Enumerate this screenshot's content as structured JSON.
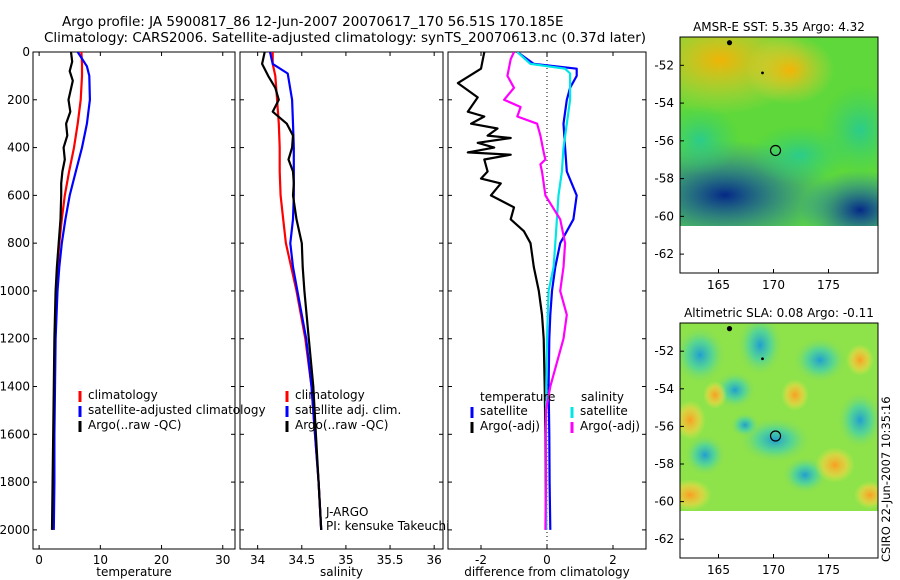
{
  "figure": {
    "title_line1": "Argo profile: JA 5900817_86 12-Jun-2007 20070617_170 56.51S 170.185E",
    "title_line2": "Climatology: CARS2006. Satellite-adjusted climatology: synTS_20070613.nc (0.37d later)",
    "credit": "CSIRO 22-Jun-2007 10:35:16",
    "colors": {
      "climatology": "#ff0000",
      "satellite": "#0000ff",
      "argo": "#000000",
      "temp_satellite_diff": "#0000ff",
      "sal_satellite_diff": "#00e5e5",
      "sal_argo_diff": "#ff00ff"
    }
  },
  "chart_data": [
    {
      "id": "temperature",
      "type": "line",
      "xlabel": "temperature",
      "xlim": [
        -1,
        32
      ],
      "ylim": [
        0,
        2080
      ],
      "y_reversed": true,
      "xticks": [
        0,
        10,
        20,
        30
      ],
      "yticks": [
        0,
        200,
        400,
        600,
        800,
        1000,
        1200,
        1400,
        1600,
        1800,
        2000
      ],
      "legend": [
        "climatology",
        "satellite-adjusted climatology",
        "Argo(..raw -QC)"
      ],
      "legend_placement": "lower-right",
      "series": [
        {
          "name": "climatology",
          "color": "#ff0000",
          "points": [
            [
              6.9,
              0
            ],
            [
              7.0,
              50
            ],
            [
              7.0,
              100
            ],
            [
              6.8,
              200
            ],
            [
              6.3,
              300
            ],
            [
              5.7,
              400
            ],
            [
              4.9,
              500
            ],
            [
              4.2,
              600
            ],
            [
              3.7,
              700
            ],
            [
              3.3,
              800
            ],
            [
              3.0,
              900
            ],
            [
              2.8,
              1000
            ],
            [
              2.6,
              1200
            ],
            [
              2.5,
              1400
            ],
            [
              2.4,
              1600
            ],
            [
              2.3,
              1800
            ],
            [
              2.2,
              2000
            ]
          ]
        },
        {
          "name": "satellite-adjusted climatology",
          "color": "#0000ff",
          "points": [
            [
              6.3,
              0
            ],
            [
              7.8,
              60
            ],
            [
              8.2,
              100
            ],
            [
              8.3,
              200
            ],
            [
              7.8,
              300
            ],
            [
              7.0,
              400
            ],
            [
              6.0,
              500
            ],
            [
              5.0,
              600
            ],
            [
              4.3,
              700
            ],
            [
              3.7,
              800
            ],
            [
              3.3,
              900
            ],
            [
              3.0,
              1000
            ],
            [
              2.7,
              1200
            ],
            [
              2.6,
              1400
            ],
            [
              2.5,
              1600
            ],
            [
              2.5,
              1800
            ],
            [
              2.4,
              2000
            ]
          ]
        },
        {
          "name": "Argo(..raw -QC)",
          "color": "#000000",
          "points": [
            [
              5.2,
              0
            ],
            [
              5.4,
              40
            ],
            [
              5.0,
              80
            ],
            [
              5.5,
              120
            ],
            [
              4.8,
              200
            ],
            [
              5.1,
              250
            ],
            [
              4.4,
              300
            ],
            [
              4.6,
              350
            ],
            [
              4.0,
              400
            ],
            [
              4.2,
              450
            ],
            [
              3.8,
              500
            ],
            [
              3.6,
              550
            ],
            [
              3.6,
              600
            ],
            [
              3.5,
              700
            ],
            [
              3.2,
              800
            ],
            [
              2.9,
              900
            ],
            [
              2.7,
              1000
            ],
            [
              2.5,
              1200
            ],
            [
              2.4,
              1400
            ],
            [
              2.3,
              1600
            ],
            [
              2.2,
              1800
            ],
            [
              2.1,
              2000
            ]
          ]
        }
      ]
    },
    {
      "id": "salinity",
      "type": "line",
      "xlabel": "salinity",
      "xlim": [
        33.8,
        36.1
      ],
      "ylim": [
        0,
        2080
      ],
      "y_reversed": true,
      "xticks": [
        34,
        34.5,
        35,
        35.5,
        36
      ],
      "legend": [
        "climatology",
        "satellite adj. clim.",
        "Argo(..raw -QC)"
      ],
      "legend_placement": "lower-right",
      "annotations": [
        "J-ARGO",
        "PI: kensuke Takeuchi"
      ],
      "series": [
        {
          "name": "climatology",
          "color": "#ff0000",
          "points": [
            [
              34.17,
              0
            ],
            [
              34.17,
              50
            ],
            [
              34.2,
              100
            ],
            [
              34.22,
              200
            ],
            [
              34.24,
              300
            ],
            [
              34.25,
              400
            ],
            [
              34.25,
              500
            ],
            [
              34.26,
              600
            ],
            [
              34.29,
              700
            ],
            [
              34.32,
              800
            ],
            [
              34.38,
              900
            ],
            [
              34.44,
              1000
            ],
            [
              34.54,
              1200
            ],
            [
              34.61,
              1400
            ],
            [
              34.65,
              1600
            ],
            [
              34.69,
              1800
            ],
            [
              34.72,
              2000
            ]
          ]
        },
        {
          "name": "satellite adj. clim.",
          "color": "#0000ff",
          "points": [
            [
              34.14,
              0
            ],
            [
              34.17,
              50
            ],
            [
              34.34,
              90
            ],
            [
              34.39,
              200
            ],
            [
              34.4,
              300
            ],
            [
              34.41,
              400
            ],
            [
              34.41,
              500
            ],
            [
              34.41,
              600
            ],
            [
              34.4,
              700
            ],
            [
              34.37,
              800
            ],
            [
              34.4,
              900
            ],
            [
              34.45,
              1000
            ],
            [
              34.55,
              1200
            ],
            [
              34.61,
              1400
            ],
            [
              34.65,
              1600
            ],
            [
              34.69,
              1800
            ],
            [
              34.72,
              2000
            ]
          ]
        },
        {
          "name": "Argo(..raw -QC)",
          "color": "#000000",
          "points": [
            [
              34.08,
              0
            ],
            [
              34.05,
              50
            ],
            [
              34.12,
              100
            ],
            [
              34.2,
              150
            ],
            [
              34.24,
              200
            ],
            [
              34.17,
              250
            ],
            [
              34.33,
              300
            ],
            [
              34.4,
              350
            ],
            [
              34.39,
              400
            ],
            [
              34.35,
              450
            ],
            [
              34.4,
              500
            ],
            [
              34.41,
              550
            ],
            [
              34.4,
              600
            ],
            [
              34.44,
              700
            ],
            [
              34.5,
              800
            ],
            [
              34.51,
              900
            ],
            [
              34.53,
              1000
            ],
            [
              34.58,
              1200
            ],
            [
              34.63,
              1400
            ],
            [
              34.66,
              1600
            ],
            [
              34.69,
              1800
            ],
            [
              34.72,
              2000
            ]
          ]
        }
      ]
    },
    {
      "id": "difference",
      "type": "line",
      "xlabel": "difference from climatology",
      "xlim": [
        -3,
        3
      ],
      "ylim": [
        0,
        2080
      ],
      "y_reversed": true,
      "xticks": [
        -2,
        0,
        2
      ],
      "legend_groups": [
        {
          "heading": "temperature",
          "entries": [
            "satellite",
            "Argo(-adj)"
          ]
        },
        {
          "heading": "salinity",
          "entries": [
            "satellite",
            "Argo(-adj)"
          ]
        }
      ],
      "legend_placement": "lower-center",
      "series": [
        {
          "name": "temperature satellite",
          "color": "#0000ff",
          "points": [
            [
              -0.9,
              0
            ],
            [
              -0.4,
              50
            ],
            [
              0.9,
              70
            ],
            [
              0.9,
              100
            ],
            [
              0.7,
              150
            ],
            [
              0.6,
              200
            ],
            [
              0.5,
              300
            ],
            [
              0.55,
              400
            ],
            [
              0.6,
              500
            ],
            [
              0.9,
              600
            ],
            [
              0.8,
              700
            ],
            [
              0.4,
              800
            ],
            [
              0.25,
              900
            ],
            [
              0.15,
              1000
            ],
            [
              0.1,
              1100
            ],
            [
              0.07,
              1200
            ],
            [
              0.05,
              1400
            ],
            [
              0.07,
              1600
            ],
            [
              0.08,
              1800
            ],
            [
              0.1,
              2000
            ]
          ]
        },
        {
          "name": "temperature Argo(-adj)",
          "color": "#000000",
          "points": [
            [
              -1.9,
              0
            ],
            [
              -2.0,
              70
            ],
            [
              -2.7,
              130
            ],
            [
              -2.1,
              190
            ],
            [
              -2.4,
              250
            ],
            [
              -1.9,
              270
            ],
            [
              -2.3,
              300
            ],
            [
              -1.5,
              320
            ],
            [
              -1.8,
              350
            ],
            [
              -1.1,
              360
            ],
            [
              -2.1,
              380
            ],
            [
              -1.6,
              400
            ],
            [
              -2.4,
              420
            ],
            [
              -1.1,
              430
            ],
            [
              -1.9,
              450
            ],
            [
              -1.8,
              500
            ],
            [
              -2.0,
              530
            ],
            [
              -1.4,
              550
            ],
            [
              -1.7,
              600
            ],
            [
              -1.0,
              650
            ],
            [
              -1.1,
              700
            ],
            [
              -0.7,
              750
            ],
            [
              -0.5,
              800
            ],
            [
              -0.4,
              900
            ],
            [
              -0.25,
              1000
            ],
            [
              -0.15,
              1100
            ],
            [
              -0.1,
              1200
            ],
            [
              -0.07,
              1400
            ],
            [
              -0.05,
              1600
            ],
            [
              -0.04,
              1800
            ],
            [
              -0.03,
              2000
            ]
          ]
        },
        {
          "name": "salinity satellite",
          "color": "#00e5e5",
          "points": [
            [
              -0.9,
              0
            ],
            [
              -0.5,
              50
            ],
            [
              0.55,
              70
            ],
            [
              0.7,
              90
            ],
            [
              0.7,
              200
            ],
            [
              0.6,
              300
            ],
            [
              0.5,
              400
            ],
            [
              0.45,
              500
            ],
            [
              0.35,
              600
            ],
            [
              0.25,
              800
            ],
            [
              0.2,
              900
            ],
            [
              0.05,
              1000
            ],
            [
              0.0,
              1200
            ],
            [
              -0.02,
              1400
            ],
            [
              -0.03,
              1600
            ],
            [
              -0.03,
              1800
            ],
            [
              -0.02,
              2000
            ]
          ]
        },
        {
          "name": "salinity Argo(-adj)",
          "color": "#ff00ff",
          "points": [
            [
              -1.0,
              0
            ],
            [
              -1.1,
              30
            ],
            [
              -1.2,
              100
            ],
            [
              -1.0,
              150
            ],
            [
              -1.3,
              200
            ],
            [
              -0.8,
              230
            ],
            [
              -0.9,
              270
            ],
            [
              -0.3,
              300
            ],
            [
              -0.2,
              350
            ],
            [
              -0.1,
              420
            ],
            [
              -0.05,
              450
            ],
            [
              -0.2,
              470
            ],
            [
              -0.15,
              500
            ],
            [
              -0.05,
              600
            ],
            [
              0.4,
              700
            ],
            [
              0.55,
              800
            ],
            [
              0.5,
              900
            ],
            [
              0.4,
              1000
            ],
            [
              0.6,
              1100
            ],
            [
              0.5,
              1200
            ],
            [
              0.3,
              1300
            ],
            [
              0.1,
              1400
            ],
            [
              -0.03,
              1500
            ],
            [
              -0.04,
              1600
            ],
            [
              -0.03,
              1800
            ],
            [
              -0.05,
              2000
            ]
          ]
        }
      ]
    },
    {
      "id": "sst_map",
      "type": "heatmap",
      "title": "AMSR-E SST: 5.35 Argo: 4.32",
      "xlim": [
        161.5,
        179.5
      ],
      "ylim": [
        -63,
        -50.5
      ],
      "xticks": [
        165,
        170,
        175
      ],
      "yticks": [
        -52,
        -54,
        -56,
        -58,
        -60,
        -62
      ],
      "data_lat_min": -60,
      "argo_position": [
        170.185,
        -56.51
      ],
      "previous_positions": [
        [
          166,
          -50.8
        ],
        [
          169,
          -52.4
        ]
      ]
    },
    {
      "id": "sla_map",
      "type": "heatmap",
      "title": "Altimetric SLA: 0.08 Argo: -0.11",
      "xlim": [
        161.5,
        179.5
      ],
      "ylim": [
        -63,
        -50.5
      ],
      "xticks": [
        165,
        170,
        175
      ],
      "yticks": [
        -52,
        -54,
        -56,
        -58,
        -60,
        -62
      ],
      "data_lat_min": -60,
      "argo_position": [
        170.185,
        -56.51
      ],
      "previous_positions": [
        [
          166,
          -50.8
        ],
        [
          169,
          -52.4
        ]
      ]
    }
  ]
}
